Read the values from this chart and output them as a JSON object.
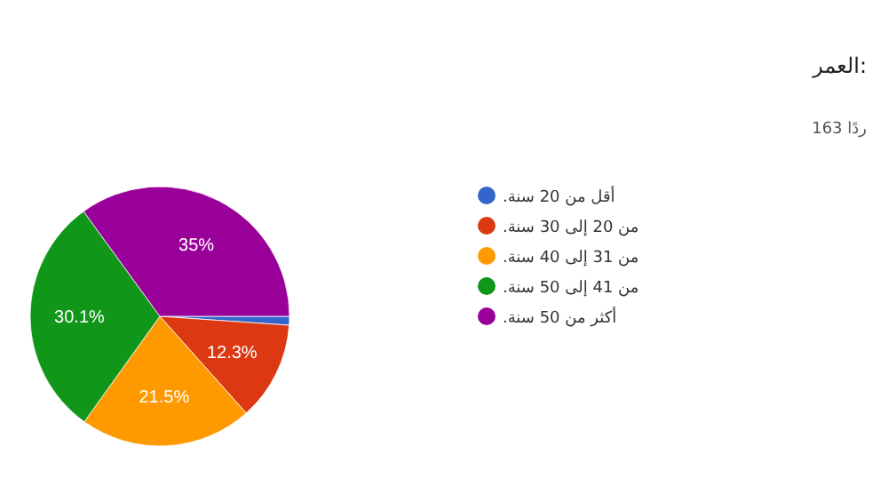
{
  "chart_data": {
    "type": "pie",
    "title": "العمر:",
    "subtitle": "163 ردًا",
    "categories": [
      "أقل من 20 سنة.",
      "من 20 إلى 30 سنة.",
      "من 31 إلى 40 سنة.",
      "من 41 إلى 50 سنة.",
      "أكثر من 50 سنة."
    ],
    "values": [
      1.1,
      12.3,
      21.5,
      30.1,
      35
    ],
    "colors": [
      "#3366cc",
      "#dc3912",
      "#ff9900",
      "#109618",
      "#990099"
    ],
    "value_labels": [
      null,
      "12.3%",
      "21.5%",
      "30.1%",
      "35%"
    ],
    "legend": "right"
  }
}
